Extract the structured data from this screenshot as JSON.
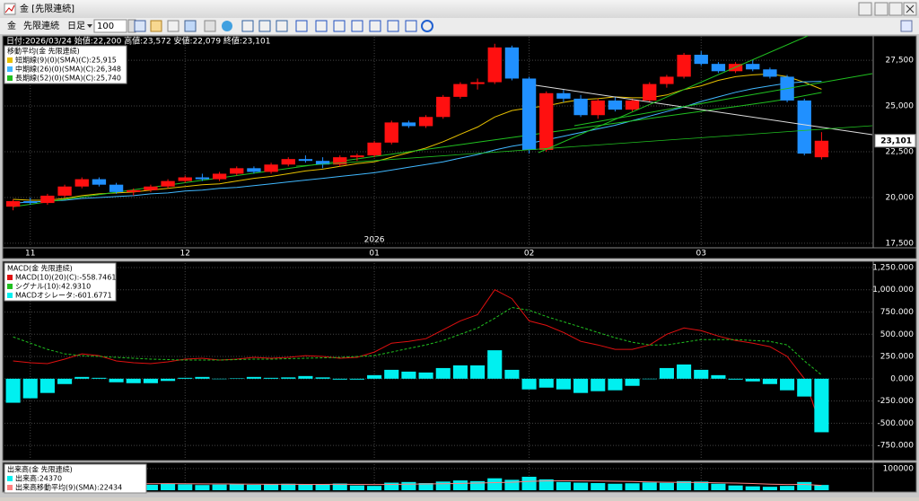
{
  "window": {
    "title": "金 [先限連続]"
  },
  "toolbar": {
    "symbol": "金",
    "contract": "先限連続",
    "period": "日足",
    "count": "100"
  },
  "chart_data": [
    {
      "type": "candlestick",
      "info": "日付:2026/03/24 始値:22,200 高値:23,572 安値:22,079 終値:23,101",
      "legend_title": "移動平均(金 先限連続)",
      "categories": [
        null,
        "11",
        null,
        null,
        null,
        null,
        null,
        null,
        null,
        null,
        "12",
        null,
        null,
        null,
        null,
        null,
        null,
        null,
        null,
        null,
        null,
        "01",
        null,
        null,
        null,
        null,
        null,
        null,
        null,
        null,
        "02",
        null,
        null,
        null,
        null,
        null,
        null,
        null,
        null,
        null,
        "03",
        null,
        null,
        null,
        null,
        null,
        null,
        null
      ],
      "year_label": {
        "label": "2026",
        "category": 21
      },
      "ohlc": [
        [
          19500,
          19900,
          19300,
          19800
        ],
        [
          19800,
          20000,
          19600,
          19700
        ],
        [
          19700,
          20200,
          19600,
          20100
        ],
        [
          20100,
          20700,
          20000,
          20600
        ],
        [
          20600,
          21100,
          20500,
          21000
        ],
        [
          21000,
          21100,
          20600,
          20700
        ],
        [
          20700,
          20800,
          20200,
          20300
        ],
        [
          20300,
          20500,
          20100,
          20400
        ],
        [
          20400,
          20700,
          20300,
          20600
        ],
        [
          20600,
          21000,
          20500,
          20900
        ],
        [
          20900,
          21200,
          20800,
          21100
        ],
        [
          21100,
          21300,
          20900,
          21000
        ],
        [
          21000,
          21400,
          20900,
          21300
        ],
        [
          21300,
          21700,
          21200,
          21600
        ],
        [
          21600,
          21700,
          21300,
          21400
        ],
        [
          21400,
          21900,
          21300,
          21800
        ],
        [
          21800,
          22200,
          21700,
          22100
        ],
        [
          22100,
          22300,
          21900,
          22000
        ],
        [
          22000,
          22200,
          21600,
          21800
        ],
        [
          21800,
          22300,
          21700,
          22200
        ],
        [
          22200,
          22400,
          22000,
          22300
        ],
        [
          22300,
          23100,
          22200,
          23000
        ],
        [
          23000,
          24200,
          22900,
          24100
        ],
        [
          24100,
          24200,
          23800,
          23900
        ],
        [
          23900,
          24500,
          23800,
          24400
        ],
        [
          24400,
          25600,
          24300,
          25500
        ],
        [
          25500,
          26300,
          25400,
          26200
        ],
        [
          26200,
          26500,
          25900,
          26300
        ],
        [
          26300,
          28400,
          26200,
          28200
        ],
        [
          28200,
          28300,
          26400,
          26500
        ],
        [
          26500,
          26600,
          22400,
          22600
        ],
        [
          22600,
          25800,
          22500,
          25700
        ],
        [
          25700,
          25900,
          25200,
          25400
        ],
        [
          25400,
          25600,
          24400,
          24500
        ],
        [
          24500,
          25400,
          24300,
          25300
        ],
        [
          25300,
          25500,
          24700,
          24800
        ],
        [
          24800,
          25400,
          24700,
          25300
        ],
        [
          25300,
          26300,
          25200,
          26200
        ],
        [
          26200,
          26700,
          26000,
          26600
        ],
        [
          26600,
          27900,
          26500,
          27800
        ],
        [
          27800,
          28000,
          27200,
          27300
        ],
        [
          27300,
          27400,
          26800,
          26900
        ],
        [
          26900,
          27400,
          26800,
          27300
        ],
        [
          27300,
          27500,
          26900,
          27000
        ],
        [
          27000,
          27100,
          26500,
          26600
        ],
        [
          26600,
          26700,
          25200,
          25300
        ],
        [
          25300,
          25400,
          22300,
          22400
        ],
        [
          22200,
          23572,
          22079,
          23101
        ]
      ],
      "up_color": "#ff1010",
      "down_color": "#2090ff",
      "series": [
        {
          "name": "短期線(9)(0)(SMA)(C):25,915",
          "color": "#e6c000",
          "values": [
            19900,
            19850,
            19850,
            19950,
            20100,
            20200,
            20250,
            20300,
            20400,
            20500,
            20600,
            20700,
            20750,
            20900,
            21050,
            21150,
            21300,
            21450,
            21550,
            21700,
            21850,
            21950,
            22200,
            22450,
            22700,
            23050,
            23450,
            23850,
            24400,
            24750,
            24900,
            25000,
            25200,
            25350,
            25400,
            25500,
            25450,
            25450,
            25600,
            25900,
            26100,
            26400,
            26600,
            26700,
            26750,
            26600,
            26300,
            25915
          ]
        },
        {
          "name": "中期線(26)(0)(SMA)(C):26,348",
          "color": "#40b8ff",
          "values": [
            19700,
            19750,
            19800,
            19850,
            19950,
            20000,
            20050,
            20100,
            20200,
            20250,
            20350,
            20400,
            20500,
            20550,
            20650,
            20750,
            20850,
            20950,
            21050,
            21150,
            21250,
            21350,
            21500,
            21650,
            21800,
            21950,
            22150,
            22350,
            22600,
            22800,
            22950,
            23150,
            23350,
            23550,
            23750,
            23950,
            24200,
            24450,
            24700,
            24950,
            25250,
            25500,
            25750,
            25950,
            26100,
            26250,
            26320,
            26348
          ]
        },
        {
          "name": "長期線(52)(0)(SMA)(C):25,740",
          "color": "#20c020",
          "values": [
            19500,
            19630,
            19760,
            19900,
            20030,
            20160,
            20290,
            20420,
            20550,
            20680,
            20810,
            20940,
            21070,
            21200,
            21330,
            21460,
            21590,
            21720,
            21850,
            21980,
            22110,
            22240,
            22370,
            22500,
            22630,
            22760,
            22890,
            23020,
            23150,
            23280,
            23410,
            23540,
            23670,
            23800,
            23930,
            24060,
            24190,
            24320,
            24450,
            24580,
            24710,
            24840,
            24970,
            25100,
            25240,
            25380,
            25560,
            25740
          ]
        }
      ],
      "ylim": [
        17300,
        28780
      ],
      "yticks": [
        {
          "value": 17500,
          "label": "17,500"
        },
        {
          "value": 20000,
          "label": "20,000"
        },
        {
          "value": 22500,
          "label": "22,500"
        },
        {
          "value": 25000,
          "label": "25,000"
        },
        {
          "value": 27500,
          "label": "27,500"
        }
      ],
      "last_price": {
        "value": 23101,
        "label": "23,101"
      },
      "grid": true
    },
    {
      "type": "macd",
      "legend_title": "MACD(金 先限連続)",
      "series": [
        {
          "name": "MACD(10)(20)(C):-558.7461",
          "color": "#e01010",
          "values": [
            200,
            180,
            170,
            220,
            280,
            260,
            200,
            180,
            170,
            190,
            220,
            230,
            210,
            220,
            240,
            230,
            240,
            260,
            250,
            230,
            240,
            300,
            400,
            420,
            450,
            550,
            650,
            720,
            1000,
            900,
            650,
            600,
            520,
            420,
            380,
            330,
            330,
            380,
            500,
            570,
            540,
            480,
            430,
            400,
            360,
            250,
            0,
            -558.7461
          ]
        },
        {
          "name": "シグナル(10):42.9310",
          "color": "#20c020",
          "dash": true,
          "values": [
            470,
            400,
            330,
            280,
            260,
            250,
            240,
            230,
            220,
            215,
            210,
            210,
            210,
            215,
            220,
            220,
            225,
            230,
            235,
            240,
            250,
            260,
            300,
            340,
            380,
            430,
            500,
            570,
            680,
            800,
            770,
            700,
            640,
            580,
            520,
            460,
            410,
            380,
            380,
            410,
            440,
            440,
            440,
            430,
            420,
            380,
            200,
            42.931
          ]
        },
        {
          "name": "MACDオシレータ:-601.6771",
          "color": "#00f0f0",
          "kind": "bar",
          "values": [
            -270,
            -220,
            -160,
            -60,
            20,
            10,
            -40,
            -50,
            -50,
            -25,
            10,
            20,
            0,
            5,
            20,
            10,
            15,
            30,
            15,
            -10,
            -10,
            40,
            100,
            80,
            70,
            120,
            150,
            150,
            320,
            100,
            -120,
            -100,
            -120,
            -160,
            -140,
            -130,
            -80,
            0,
            120,
            160,
            100,
            40,
            -10,
            -30,
            -60,
            -130,
            -200,
            -601.6771
          ]
        }
      ],
      "ylim": [
        -900,
        1300
      ],
      "yticks": [
        {
          "value": -750,
          "label": "-750.000"
        },
        {
          "value": -500,
          "label": "-500.000"
        },
        {
          "value": -250,
          "label": "-250.000"
        },
        {
          "value": 0,
          "label": "0.000"
        },
        {
          "value": 250,
          "label": "250.000"
        },
        {
          "value": 500,
          "label": "500.000"
        },
        {
          "value": 750,
          "label": "750.000"
        },
        {
          "value": 1000,
          "label": "1,000.000"
        },
        {
          "value": 1250,
          "label": "1,250.000"
        }
      ],
      "grid": true
    },
    {
      "type": "volume",
      "legend_title": "出来高(金 先限連続)",
      "series": [
        {
          "name": "出来高:24370",
          "color": "#00f0f0",
          "kind": "bar",
          "values": [
            35000,
            30000,
            28000,
            32000,
            36000,
            30000,
            33000,
            28000,
            25000,
            30000,
            27000,
            24000,
            26000,
            29000,
            25000,
            27000,
            30000,
            26000,
            28000,
            31000,
            22000,
            20000,
            35000,
            38000,
            33000,
            40000,
            45000,
            42000,
            55000,
            48000,
            62000,
            50000,
            38000,
            35000,
            33000,
            30000,
            32000,
            36000,
            34000,
            42000,
            40000,
            30000,
            22000,
            18000,
            16000,
            20000,
            38000,
            24370
          ]
        },
        {
          "name": "出来高移動平均(9)(SMA):22434",
          "color": "#ff8080",
          "values": [
            31000,
            31000,
            30500,
            30500,
            31000,
            31000,
            31000,
            30500,
            30000,
            30500,
            30000,
            29500,
            29000,
            28500,
            28000,
            27500,
            27500,
            27000,
            27000,
            27500,
            27000,
            26500,
            27000,
            28000,
            29000,
            30000,
            31500,
            33000,
            35000,
            37000,
            41000,
            43000,
            43500,
            43000,
            42500,
            41500,
            40000,
            38500,
            37000,
            36000,
            35500,
            34500,
            33000,
            31000,
            28000,
            26500,
            27000,
            22434
          ]
        }
      ],
      "ylim": [
        0,
        120000
      ],
      "yticks": [
        100000
      ],
      "grid": true
    }
  ]
}
